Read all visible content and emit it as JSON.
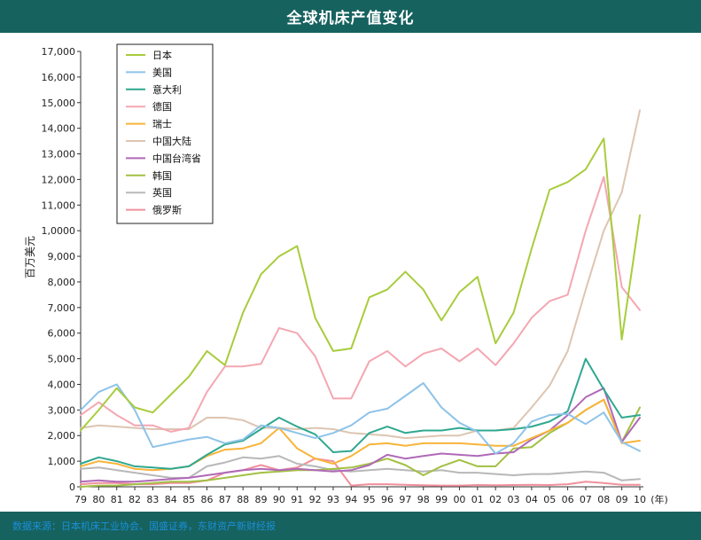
{
  "header": {
    "title": "全球机床产值变化"
  },
  "footer": {
    "source": "数据来源：日本机床工业协会、国盛证券，东财资产新财经报"
  },
  "chart_data": {
    "type": "line",
    "title": "全球机床产值变化",
    "ylabel": "百万美元",
    "xunit": "(年)",
    "ylim": [
      0,
      17000
    ],
    "yticks": [
      0,
      1000,
      2000,
      3000,
      4000,
      5000,
      6000,
      7000,
      8000,
      9000,
      10000,
      11000,
      12000,
      13000,
      14000,
      15000,
      16000,
      17000
    ],
    "ytick_labels": [
      "0",
      "1,000",
      "2,000",
      "3,000",
      "4,000",
      "5,000",
      "6,000",
      "7,000",
      "8,000",
      "9,000",
      "1,0000",
      "11,000",
      "12,000",
      "13,000",
      "14,000",
      "15,000",
      "16,000",
      "17,000"
    ],
    "categories": [
      "79",
      "80",
      "81",
      "82",
      "83",
      "84",
      "85",
      "86",
      "87",
      "88",
      "89",
      "90",
      "91",
      "92",
      "93",
      "94",
      "95",
      "96",
      "97",
      "98",
      "99",
      "00",
      "01",
      "02",
      "03",
      "04",
      "05",
      "06",
      "07",
      "08",
      "09",
      "10"
    ],
    "legend_position": "top-left",
    "series": [
      {
        "name": "日本",
        "color": "#a8cc3c",
        "values": [
          2200,
          3000,
          3850,
          3100,
          2900,
          3600,
          4300,
          5300,
          4750,
          6800,
          8300,
          9000,
          9400,
          6600,
          5300,
          5400,
          7400,
          7700,
          8400,
          7700,
          6500,
          7600,
          8200,
          5600,
          6800,
          9300,
          11600,
          11900,
          12400,
          13600,
          5750,
          10600
        ]
      },
      {
        "name": "美国",
        "color": "#8ec3e8",
        "values": [
          3000,
          3700,
          4000,
          3000,
          1550,
          1700,
          1850,
          1950,
          1700,
          1850,
          2400,
          2300,
          2100,
          1900,
          2100,
          2400,
          2900,
          3050,
          3550,
          4050,
          3100,
          2500,
          2150,
          1300,
          1700,
          2550,
          2800,
          2850,
          2450,
          2900,
          1750,
          1400
        ]
      },
      {
        "name": "意大利",
        "color": "#2fa890",
        "values": [
          900,
          1150,
          1000,
          800,
          750,
          700,
          800,
          1250,
          1650,
          1800,
          2250,
          2700,
          2350,
          2050,
          1350,
          1400,
          2100,
          2350,
          2100,
          2200,
          2200,
          2300,
          2200,
          2200,
          2250,
          2350,
          2550,
          2950,
          5000,
          3800,
          2700,
          2800
        ]
      },
      {
        "name": "德国",
        "color": "#f4a7b2",
        "values": [
          2800,
          3300,
          2800,
          2400,
          2400,
          2150,
          2300,
          3700,
          4700,
          4700,
          4800,
          6200,
          6000,
          5100,
          3450,
          3450,
          4900,
          5300,
          4700,
          5200,
          5400,
          4900,
          5400,
          4750,
          5600,
          6600,
          7250,
          7500,
          10000,
          12100,
          7800,
          6900
        ]
      },
      {
        "name": "瑞士",
        "color": "#f8b43a",
        "values": [
          800,
          1000,
          900,
          700,
          650,
          700,
          800,
          1200,
          1450,
          1500,
          1700,
          2300,
          1500,
          1100,
          900,
          1200,
          1650,
          1700,
          1600,
          1700,
          1700,
          1700,
          1650,
          1600,
          1600,
          1900,
          2200,
          2500,
          3000,
          3400,
          1700,
          1800
        ]
      },
      {
        "name": "中国大陆",
        "color": "#ddc5b2",
        "values": [
          2300,
          2400,
          2350,
          2300,
          2250,
          2250,
          2250,
          2700,
          2700,
          2600,
          2300,
          2300,
          2250,
          2300,
          2250,
          2100,
          2050,
          2000,
          1900,
          1950,
          2000,
          2000,
          2200,
          2200,
          2300,
          3100,
          3950,
          5300,
          7700,
          10000,
          11500,
          14700
        ]
      },
      {
        "name": "中国台湾省",
        "color": "#b069b8",
        "values": [
          200,
          250,
          200,
          200,
          250,
          300,
          350,
          450,
          550,
          650,
          700,
          650,
          700,
          650,
          600,
          650,
          850,
          1250,
          1100,
          1200,
          1300,
          1250,
          1200,
          1300,
          1350,
          1850,
          2200,
          2800,
          3500,
          3850,
          1750,
          2700
        ]
      },
      {
        "name": "韩国",
        "color": "#a2c043",
        "values": [
          0,
          50,
          50,
          100,
          150,
          200,
          200,
          250,
          350,
          450,
          550,
          600,
          650,
          650,
          700,
          750,
          900,
          1100,
          850,
          450,
          800,
          1050,
          800,
          800,
          1500,
          1550,
          2100,
          2500,
          3000,
          3400,
          1750,
          3100
        ]
      },
      {
        "name": "英国",
        "color": "#b8b8b8",
        "values": [
          700,
          750,
          650,
          550,
          450,
          350,
          350,
          800,
          950,
          1150,
          1100,
          1200,
          900,
          800,
          650,
          600,
          650,
          700,
          650,
          600,
          650,
          550,
          550,
          500,
          450,
          500,
          500,
          550,
          600,
          550,
          250,
          300
        ]
      },
      {
        "name": "俄罗斯",
        "color": "#f0909c",
        "values": [
          100,
          150,
          150,
          100,
          100,
          150,
          150,
          250,
          550,
          650,
          850,
          650,
          750,
          1100,
          1000,
          50,
          100,
          100,
          80,
          60,
          50,
          50,
          70,
          60,
          70,
          80,
          70,
          100,
          200,
          150,
          80,
          80
        ]
      }
    ]
  }
}
